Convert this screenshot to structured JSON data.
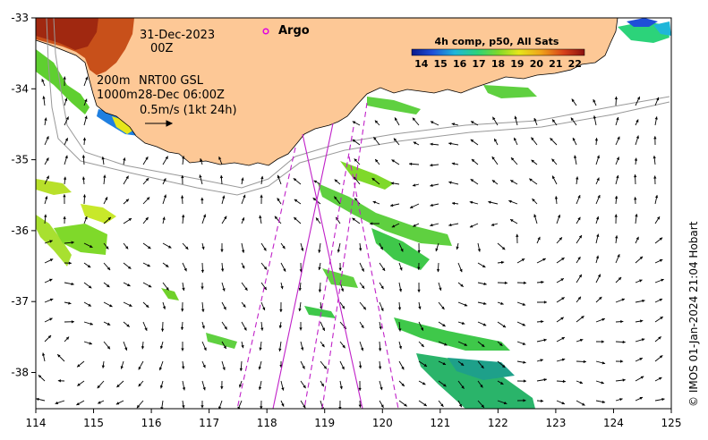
{
  "map": {
    "date_line1": "31-Dec-2023",
    "date_line2": "00Z",
    "contour_200": "200m",
    "contour_1000": "1000m",
    "source": "NRT00 GSL",
    "source_date": "28-Dec 06:00Z",
    "vector_scale": "0.5m/s (1kt 24h)",
    "argo_label": "Argo",
    "credit": "© IMOS 01-Jan-2024 21:04 Hobart",
    "colors": {
      "land": "#fdc896",
      "argo": "#e000e0",
      "track": "#c020c8"
    }
  },
  "colorbar": {
    "title": "4h comp, p50, All Sats",
    "ticks": [
      "14",
      "15",
      "16",
      "17",
      "18",
      "19",
      "20",
      "21",
      "22"
    ],
    "range": [
      13.5,
      22.5
    ]
  },
  "axes": {
    "x_ticks": [
      "114",
      "115",
      "116",
      "117",
      "118",
      "119",
      "120",
      "121",
      "122",
      "123",
      "124",
      "125"
    ],
    "y_ticks": [
      "-33",
      "-34",
      "-35",
      "-36",
      "-37",
      "-38"
    ]
  }
}
